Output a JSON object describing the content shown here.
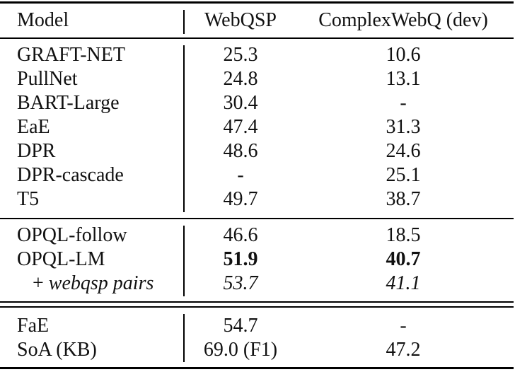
{
  "header": {
    "model": "Model",
    "webqsp": "WebQSP",
    "cwq": "ComplexWebQ (dev)"
  },
  "group1": [
    {
      "model": "GRAFT-NET",
      "webqsp": "25.3",
      "cwq": "10.6"
    },
    {
      "model": "PullNet",
      "webqsp": "24.8",
      "cwq": "13.1"
    },
    {
      "model": "BART-Large",
      "webqsp": "30.4",
      "cwq": "-"
    },
    {
      "model": "EaE",
      "webqsp": "47.4",
      "cwq": "31.3"
    },
    {
      "model": "DPR",
      "webqsp": "48.6",
      "cwq": "24.6"
    },
    {
      "model": "DPR-cascade",
      "webqsp": "-",
      "cwq": "25.1"
    },
    {
      "model": "T5",
      "webqsp": "49.7",
      "cwq": "38.7"
    }
  ],
  "group2": [
    {
      "model": "OPQL-follow",
      "webqsp": "46.6",
      "cwq": "18.5"
    },
    {
      "model": "OPQL-LM",
      "webqsp": "51.9",
      "cwq": "40.7"
    },
    {
      "model_prefix": "+ ",
      "model": "webqsp pairs",
      "webqsp": "53.7",
      "cwq": "41.1"
    }
  ],
  "group3": [
    {
      "model": "FaE",
      "webqsp": "54.7",
      "cwq": "-"
    },
    {
      "model": "SoA (KB)",
      "webqsp": "69.0 (F1)",
      "cwq": "47.2"
    }
  ]
}
